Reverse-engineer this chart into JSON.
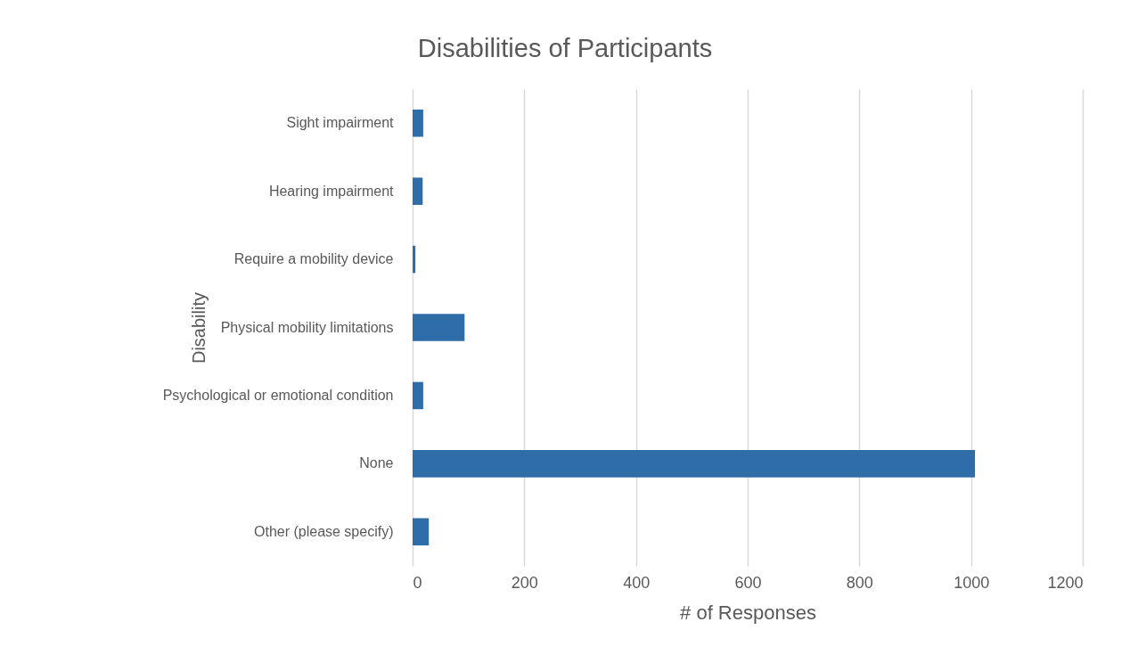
{
  "chart_data": {
    "type": "bar",
    "orientation": "horizontal",
    "title": "Disabilities of Participants",
    "xlabel": "# of Responses",
    "ylabel": "Disability",
    "categories": [
      "Sight impairment",
      "Hearing impairment",
      "Require a mobility device",
      "Physical mobility limitations",
      "Psychological or emotional condition",
      "None",
      "Other (please specify)"
    ],
    "values": [
      19,
      18,
      5,
      93,
      19,
      1007,
      29
    ],
    "color": "#2e6da8",
    "xlim": [
      0,
      1200
    ],
    "xticks": [
      0,
      200,
      400,
      600,
      800,
      1000,
      1200
    ],
    "grid": "x"
  }
}
